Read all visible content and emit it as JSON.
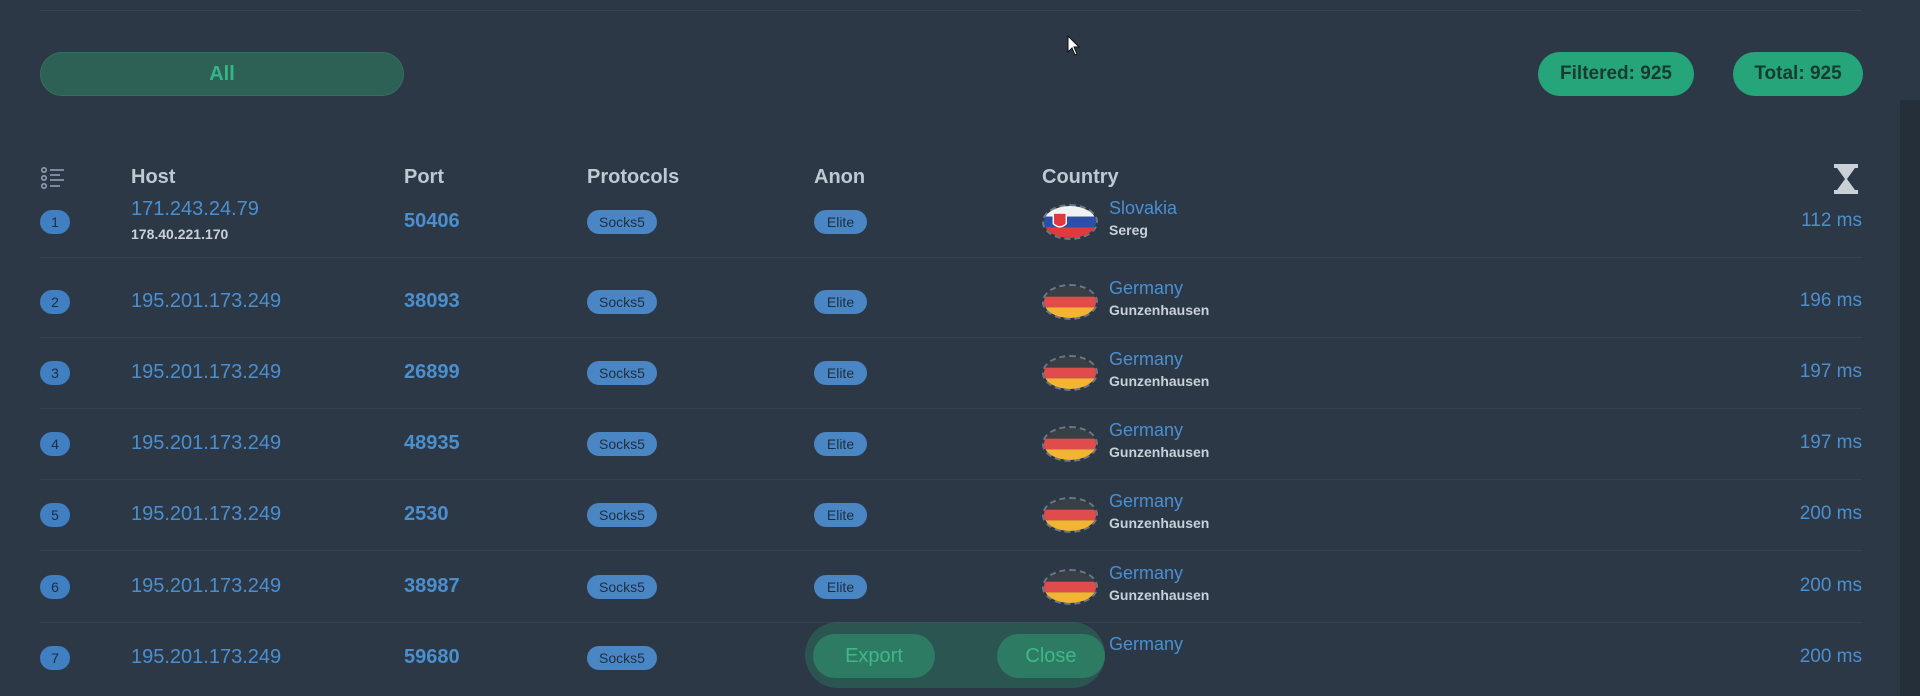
{
  "filter": {
    "all_label": "All"
  },
  "stats": {
    "filtered": "Filtered: 925",
    "total": "Total: 925"
  },
  "table": {
    "columns": {
      "host": "Host",
      "port": "Port",
      "protocols": "Protocols",
      "anon": "Anon",
      "country": "Country"
    },
    "rows": [
      {
        "index": "1",
        "host": "171.243.24.79",
        "host_sub": "178.40.221.170",
        "port": "50406",
        "protocol": "Socks5",
        "anon": "Elite",
        "flag": "slovakia",
        "country": "Slovakia",
        "city": "Sereg",
        "latency": "112 ms"
      },
      {
        "index": "2",
        "host": "195.201.173.249",
        "host_sub": "",
        "port": "38093",
        "protocol": "Socks5",
        "anon": "Elite",
        "flag": "germany",
        "country": "Germany",
        "city": "Gunzenhausen",
        "latency": "196 ms"
      },
      {
        "index": "3",
        "host": "195.201.173.249",
        "host_sub": "",
        "port": "26899",
        "protocol": "Socks5",
        "anon": "Elite",
        "flag": "germany",
        "country": "Germany",
        "city": "Gunzenhausen",
        "latency": "197 ms"
      },
      {
        "index": "4",
        "host": "195.201.173.249",
        "host_sub": "",
        "port": "48935",
        "protocol": "Socks5",
        "anon": "Elite",
        "flag": "germany",
        "country": "Germany",
        "city": "Gunzenhausen",
        "latency": "197 ms"
      },
      {
        "index": "5",
        "host": "195.201.173.249",
        "host_sub": "",
        "port": "2530",
        "protocol": "Socks5",
        "anon": "Elite",
        "flag": "germany",
        "country": "Germany",
        "city": "Gunzenhausen",
        "latency": "200 ms"
      },
      {
        "index": "6",
        "host": "195.201.173.249",
        "host_sub": "",
        "port": "38987",
        "protocol": "Socks5",
        "anon": "Elite",
        "flag": "germany",
        "country": "Germany",
        "city": "Gunzenhausen",
        "latency": "200 ms"
      },
      {
        "index": "7",
        "host": "195.201.173.249",
        "host_sub": "",
        "port": "59680",
        "protocol": "Socks5",
        "anon": "Elite",
        "flag": "germany",
        "country": "Germany",
        "city": "",
        "latency": "200 ms"
      }
    ]
  },
  "actions": {
    "export_label": "Export",
    "close_label": "Close"
  },
  "colors": {
    "background": "#2d3846",
    "accent_green": "#27a57a",
    "link_blue": "#4a8fd0",
    "badge_blue": "#4a86c4"
  },
  "icons": {
    "list": "list-icon",
    "sort": "hourglass-icon",
    "cursor": "mouse-cursor-icon"
  }
}
